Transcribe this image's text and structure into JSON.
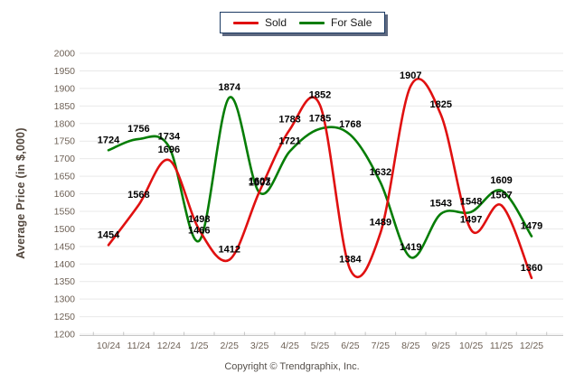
{
  "page": {
    "background": "#ffffff"
  },
  "legend": {
    "items": [
      {
        "label": "Sold",
        "color": "#e01010"
      },
      {
        "label": "For Sale",
        "color": "#067d06"
      }
    ]
  },
  "footer": {
    "copyright": "Copyright © Trendgraphix, Inc."
  },
  "colors": {
    "sold": "#e01010",
    "for_sale": "#067d06",
    "grid": "#e9e9e9",
    "axis_line": "#c6c6c6",
    "tick_text": "#6e6156",
    "data_label": "#000000",
    "legend_border": "#1b3a63"
  },
  "chart_data": {
    "type": "line",
    "title": "",
    "xlabel": "",
    "ylabel": "Average Price (in $,000)",
    "x": [
      "10/24",
      "11/24",
      "12/24",
      "1/25",
      "2/25",
      "3/25",
      "4/25",
      "5/25",
      "6/25",
      "7/25",
      "8/25",
      "9/25",
      "10/25",
      "11/25",
      "12/25"
    ],
    "series": [
      {
        "name": "Sold",
        "color": "#e01010",
        "values": [
          1454,
          1568,
          1696,
          1498,
          1412,
          1607,
          1783,
          1852,
          1384,
          1489,
          1907,
          1825,
          1497,
          1567,
          1360
        ]
      },
      {
        "name": "For Sale",
        "color": "#067d06",
        "values": [
          1724,
          1756,
          1734,
          1466,
          1874,
          1603,
          1721,
          1785,
          1768,
          1632,
          1419,
          1543,
          1548,
          1609,
          1479
        ]
      }
    ],
    "ylim": [
      1200,
      2000
    ],
    "ytick_step": 50,
    "grid": "horizontal",
    "legend_position": "top-center",
    "data_labels": true
  }
}
